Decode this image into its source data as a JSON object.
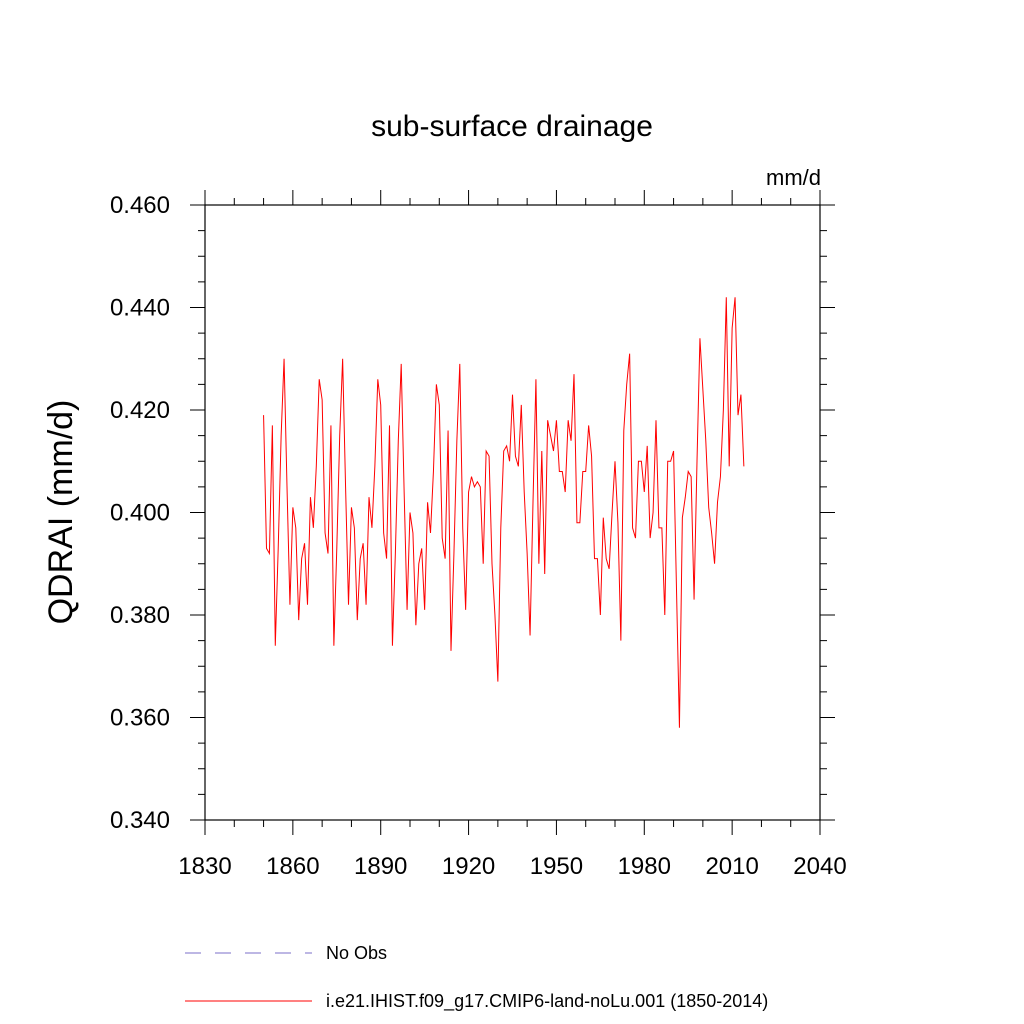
{
  "chart_data": {
    "type": "line",
    "title": "sub-surface drainage",
    "units_label": "mm/d",
    "ylabel": "QDRAI  (mm/d)",
    "xlabel": "",
    "xlim": [
      1830,
      2040
    ],
    "ylim": [
      0.34,
      0.46
    ],
    "x_ticks": [
      "1830",
      "1860",
      "1890",
      "1920",
      "1950",
      "1980",
      "2010",
      "2040"
    ],
    "y_ticks": [
      "0.340",
      "0.360",
      "0.380",
      "0.400",
      "0.420",
      "0.440",
      "0.460"
    ],
    "grid": false,
    "legend": [
      {
        "label": "No Obs",
        "style": "dashed",
        "color": "#7b6fc9"
      },
      {
        "label": "i.e21.IHIST.f09_g17.CMIP6-land-noLu.001 (1850-2014)",
        "style": "solid",
        "color": "#ff0000"
      }
    ],
    "series": [
      {
        "name": "i.e21.IHIST.f09_g17.CMIP6-land-noLu.001 (1850-2014)",
        "color": "#ff0000",
        "x_start": 1850,
        "x_step": 1,
        "values": [
          0.419,
          0.393,
          0.392,
          0.417,
          0.374,
          0.393,
          0.415,
          0.43,
          0.405,
          0.382,
          0.401,
          0.397,
          0.379,
          0.391,
          0.394,
          0.382,
          0.403,
          0.397,
          0.409,
          0.426,
          0.422,
          0.396,
          0.392,
          0.417,
          0.374,
          0.393,
          0.415,
          0.43,
          0.405,
          0.382,
          0.401,
          0.397,
          0.379,
          0.391,
          0.394,
          0.382,
          0.403,
          0.397,
          0.409,
          0.426,
          0.421,
          0.396,
          0.391,
          0.417,
          0.374,
          0.392,
          0.414,
          0.429,
          0.404,
          0.381,
          0.4,
          0.396,
          0.378,
          0.39,
          0.393,
          0.381,
          0.402,
          0.396,
          0.408,
          0.425,
          0.421,
          0.395,
          0.391,
          0.416,
          0.373,
          0.392,
          0.414,
          0.429,
          0.397,
          0.381,
          0.404,
          0.407,
          0.405,
          0.406,
          0.405,
          0.39,
          0.412,
          0.411,
          0.39,
          0.38,
          0.367,
          0.397,
          0.412,
          0.413,
          0.41,
          0.423,
          0.411,
          0.409,
          0.421,
          0.404,
          0.392,
          0.376,
          0.402,
          0.426,
          0.39,
          0.412,
          0.388,
          0.418,
          0.415,
          0.412,
          0.418,
          0.408,
          0.408,
          0.404,
          0.418,
          0.414,
          0.427,
          0.398,
          0.398,
          0.408,
          0.408,
          0.417,
          0.411,
          0.391,
          0.391,
          0.38,
          0.399,
          0.391,
          0.389,
          0.4,
          0.41,
          0.398,
          0.375,
          0.416,
          0.425,
          0.431,
          0.397,
          0.395,
          0.41,
          0.41,
          0.404,
          0.413,
          0.395,
          0.4,
          0.418,
          0.397,
          0.397,
          0.38,
          0.41,
          0.41,
          0.412,
          0.385,
          0.358,
          0.399,
          0.403,
          0.408,
          0.407,
          0.383,
          0.41,
          0.434,
          0.424,
          0.414,
          0.401,
          0.396,
          0.39,
          0.402,
          0.407,
          0.42,
          0.442,
          0.409,
          0.436,
          0.442,
          0.419,
          0.423,
          0.409
        ]
      },
      {
        "name": "No Obs",
        "color": "#7b6fc9",
        "values": []
      }
    ]
  }
}
